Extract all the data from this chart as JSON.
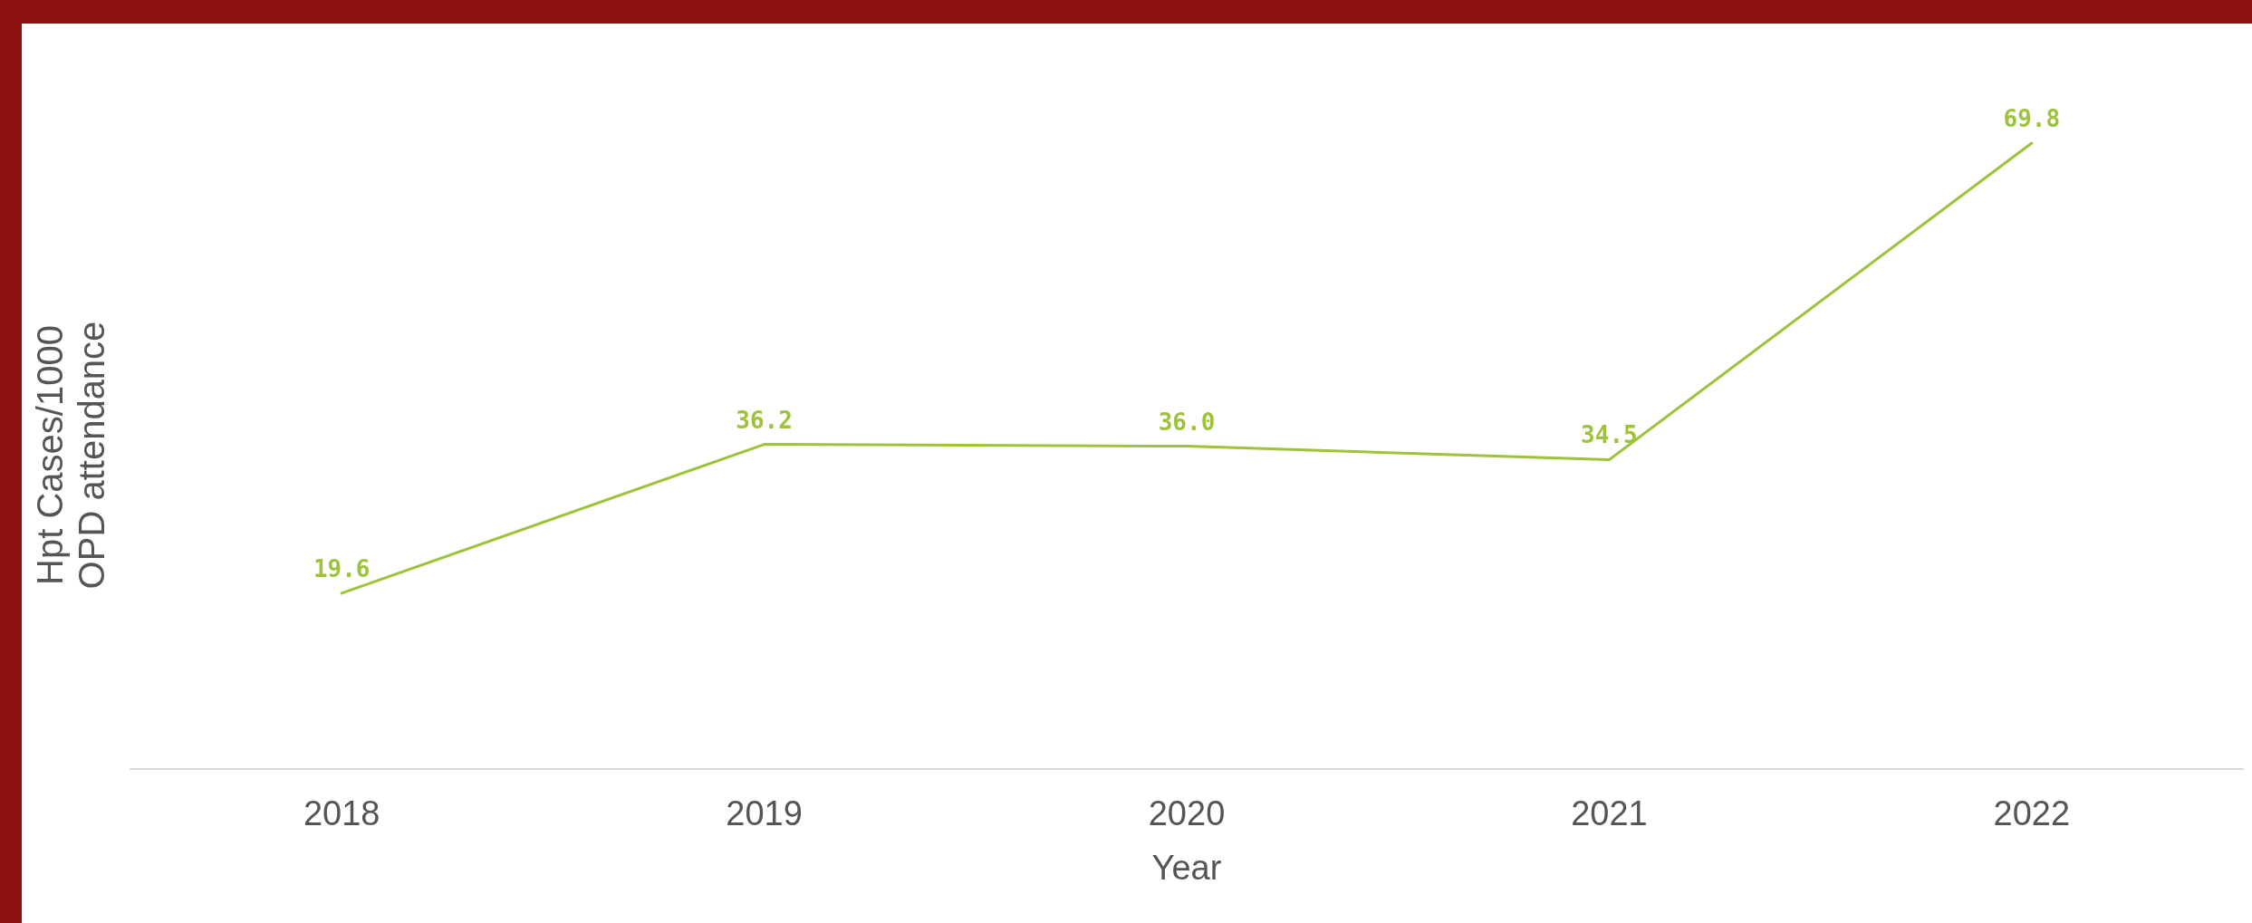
{
  "chart_data": {
    "type": "line",
    "xlabel": "Year",
    "ylabel": "Hpt Cases/1000 OPD attendance",
    "categories": [
      "2018",
      "2019",
      "2020",
      "2021",
      "2022"
    ],
    "series": [
      {
        "color": "#9dc33b",
        "values": [
          19.6,
          36.2,
          36.0,
          34.5,
          69.8
        ],
        "value_labels": [
          "19.6",
          "36.2",
          "36.0",
          "34.5",
          "69.8"
        ]
      }
    ],
    "marker": "none"
  }
}
